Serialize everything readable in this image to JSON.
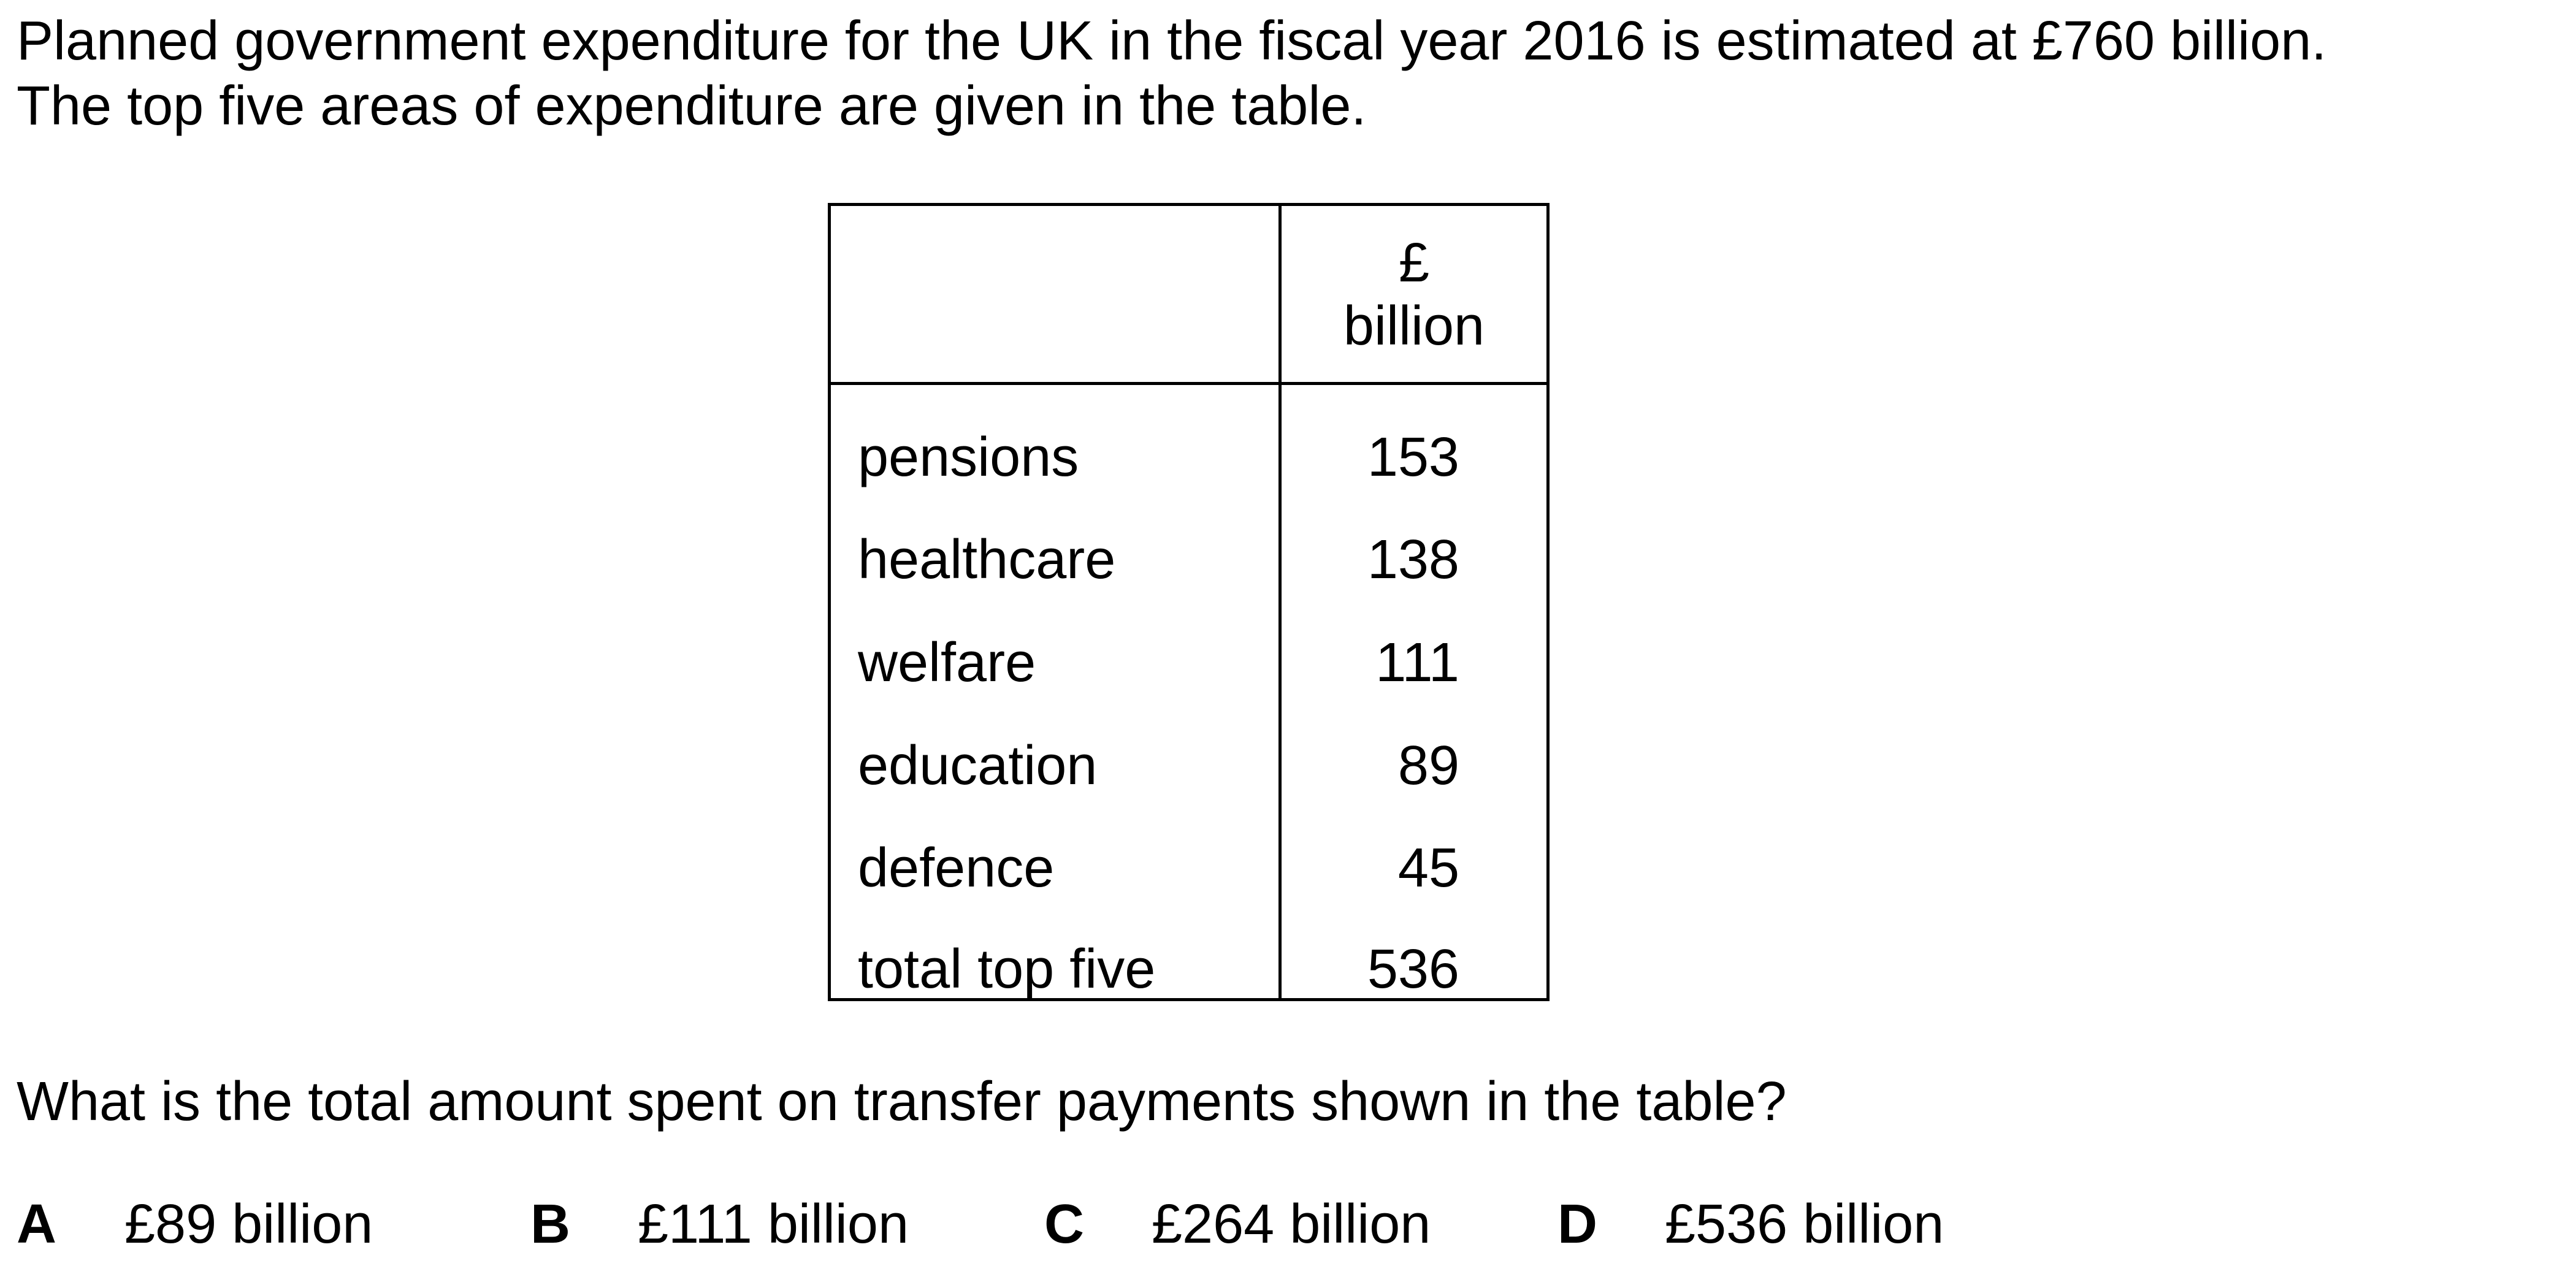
{
  "intro": {
    "line1": "Planned government expenditure for the UK in the fiscal year 2016 is estimated at £760 billion.",
    "line2": "The top five areas of expenditure are given in the table."
  },
  "table": {
    "header_symbol": "£",
    "header_word": "billion",
    "rows": [
      {
        "label": "pensions",
        "value": "153"
      },
      {
        "label": "healthcare",
        "value": "138"
      },
      {
        "label": "welfare",
        "value": "111"
      },
      {
        "label": "education",
        "value": "89"
      },
      {
        "label": "defence",
        "value": "45"
      },
      {
        "label": "total top five",
        "value": "536"
      }
    ]
  },
  "question": "What is the total amount spent on transfer payments shown in the table?",
  "options": [
    {
      "letter": "A",
      "text": "£89 billion"
    },
    {
      "letter": "B",
      "text": "£111 billion"
    },
    {
      "letter": "C",
      "text": "£264 billion"
    },
    {
      "letter": "D",
      "text": "£536 billion"
    }
  ]
}
